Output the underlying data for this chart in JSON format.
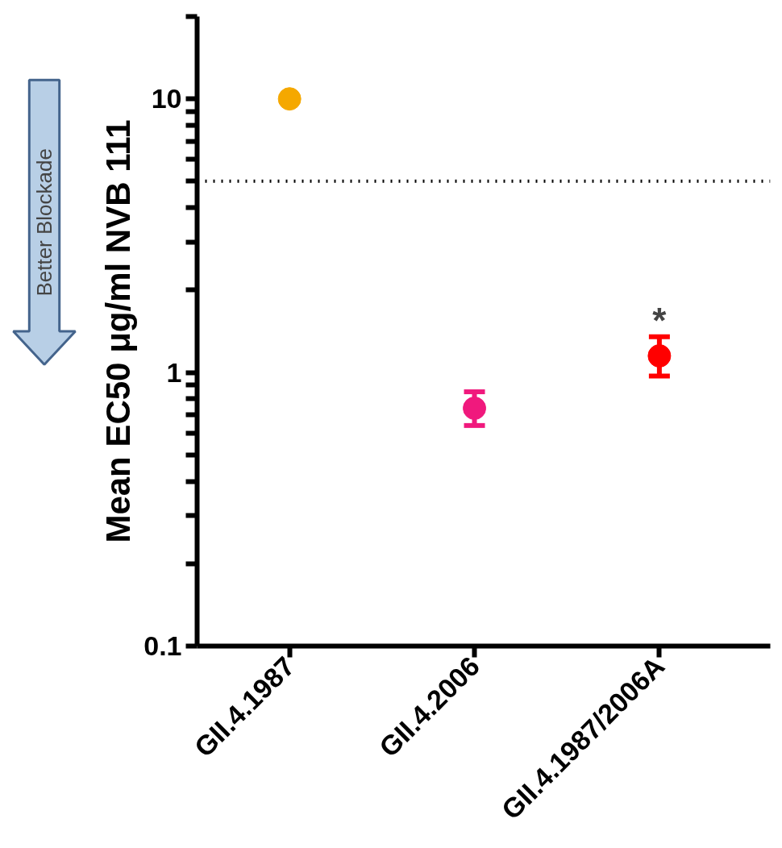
{
  "chart_data": {
    "type": "scatter",
    "ylabel": "Mean EC50 μg/ml NVB 111",
    "categories": [
      "GII.4.1987",
      "GII.4.2006",
      "GII.4.1987/2006A"
    ],
    "values": [
      10,
      0.74,
      1.15
    ],
    "errors": [
      null,
      [
        0.64,
        0.85
      ],
      [
        0.97,
        1.35
      ]
    ],
    "colors": [
      "#f5a800",
      "#f0197d",
      "#ff0000"
    ],
    "marker": "circle",
    "log": "y",
    "grid": false,
    "ylim": [
      0.1,
      20
    ],
    "yticks": [
      0.1,
      {
        "value": 0.2,
        "label": null
      },
      {
        "value": 0.3,
        "label": null
      },
      {
        "value": 0.4,
        "label": null
      },
      {
        "value": 0.5,
        "label": null
      },
      {
        "value": 0.6,
        "label": null
      },
      {
        "value": 0.7,
        "label": null
      },
      {
        "value": 0.8,
        "label": null
      },
      {
        "value": 0.9,
        "label": null
      },
      1,
      {
        "value": 2,
        "label": null
      },
      {
        "value": 3,
        "label": null
      },
      {
        "value": 4,
        "label": null
      },
      {
        "value": 5,
        "label": null
      },
      {
        "value": 6,
        "label": null
      },
      {
        "value": 7,
        "label": null
      },
      {
        "value": 8,
        "label": null
      },
      {
        "value": 9,
        "label": null
      },
      10,
      {
        "value": 20,
        "label": null
      }
    ],
    "ref_lines": [
      {
        "axis": "y",
        "value": 5,
        "line_style": "dotted",
        "color": "#000000"
      }
    ],
    "annotations": [
      {
        "text": "*",
        "x": "GII.4.1987/2006A",
        "y": 1.35
      },
      "Better Blockade"
    ]
  }
}
